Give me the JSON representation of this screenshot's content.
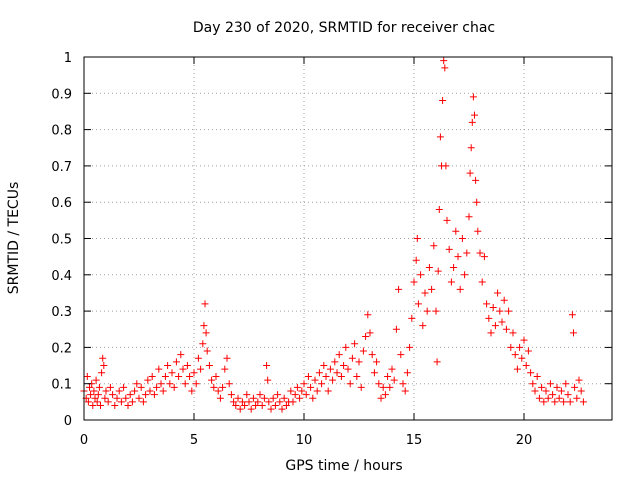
{
  "chart_data": {
    "type": "scatter",
    "title": "Day 230 of 2020, SRMTID for receiver chac",
    "xlabel": "GPS time / hours",
    "ylabel": "SRMTID / TECUs",
    "xlim": [
      0,
      24
    ],
    "ylim": [
      0,
      1
    ],
    "xticks": [
      0,
      5,
      10,
      15,
      20
    ],
    "xtick_labels": [
      "0",
      "5",
      "10",
      "15",
      "20"
    ],
    "yticks": [
      0,
      0.1,
      0.2,
      0.3,
      0.4,
      0.5,
      0.6,
      0.7,
      0.8,
      0.9,
      1.0
    ],
    "ytick_labels": [
      "0",
      "0.1",
      "0.2",
      "0.3",
      "0.4",
      "0.5",
      "0.6",
      "0.7",
      "0.8",
      "0.9",
      "1"
    ],
    "grid": true,
    "marker": "+",
    "color": "#ff0000",
    "series": [
      {
        "name": "SRMTID",
        "points": [
          [
            0.0,
            0.08
          ],
          [
            0.1,
            0.06
          ],
          [
            0.15,
            0.12
          ],
          [
            0.2,
            0.05
          ],
          [
            0.25,
            0.09
          ],
          [
            0.3,
            0.07
          ],
          [
            0.35,
            0.1
          ],
          [
            0.4,
            0.04
          ],
          [
            0.45,
            0.08
          ],
          [
            0.5,
            0.06
          ],
          [
            0.55,
            0.11
          ],
          [
            0.6,
            0.05
          ],
          [
            0.65,
            0.07
          ],
          [
            0.7,
            0.09
          ],
          [
            0.75,
            0.04
          ],
          [
            0.8,
            0.13
          ],
          [
            0.85,
            0.17
          ],
          [
            0.9,
            0.15
          ],
          [
            0.95,
            0.06
          ],
          [
            1.0,
            0.08
          ],
          [
            1.1,
            0.05
          ],
          [
            1.2,
            0.09
          ],
          [
            1.3,
            0.07
          ],
          [
            1.4,
            0.04
          ],
          [
            1.5,
            0.06
          ],
          [
            1.6,
            0.08
          ],
          [
            1.7,
            0.05
          ],
          [
            1.8,
            0.09
          ],
          [
            1.9,
            0.06
          ],
          [
            2.0,
            0.04
          ],
          [
            2.1,
            0.07
          ],
          [
            2.2,
            0.05
          ],
          [
            2.3,
            0.08
          ],
          [
            2.4,
            0.1
          ],
          [
            2.5,
            0.06
          ],
          [
            2.6,
            0.09
          ],
          [
            2.7,
            0.05
          ],
          [
            2.8,
            0.07
          ],
          [
            2.9,
            0.11
          ],
          [
            3.0,
            0.08
          ],
          [
            3.1,
            0.12
          ],
          [
            3.2,
            0.07
          ],
          [
            3.3,
            0.09
          ],
          [
            3.4,
            0.14
          ],
          [
            3.5,
            0.1
          ],
          [
            3.6,
            0.08
          ],
          [
            3.7,
            0.12
          ],
          [
            3.8,
            0.15
          ],
          [
            3.9,
            0.1
          ],
          [
            4.0,
            0.13
          ],
          [
            4.1,
            0.09
          ],
          [
            4.2,
            0.16
          ],
          [
            4.3,
            0.12
          ],
          [
            4.4,
            0.18
          ],
          [
            4.5,
            0.14
          ],
          [
            4.6,
            0.1
          ],
          [
            4.7,
            0.15
          ],
          [
            4.8,
            0.12
          ],
          [
            4.9,
            0.08
          ],
          [
            5.0,
            0.13
          ],
          [
            5.1,
            0.1
          ],
          [
            5.2,
            0.17
          ],
          [
            5.3,
            0.14
          ],
          [
            5.4,
            0.21
          ],
          [
            5.45,
            0.26
          ],
          [
            5.5,
            0.32
          ],
          [
            5.55,
            0.24
          ],
          [
            5.6,
            0.19
          ],
          [
            5.7,
            0.15
          ],
          [
            5.8,
            0.11
          ],
          [
            5.9,
            0.09
          ],
          [
            6.0,
            0.12
          ],
          [
            6.1,
            0.08
          ],
          [
            6.2,
            0.06
          ],
          [
            6.3,
            0.09
          ],
          [
            6.4,
            0.14
          ],
          [
            6.5,
            0.17
          ],
          [
            6.6,
            0.1
          ],
          [
            6.7,
            0.07
          ],
          [
            6.8,
            0.05
          ],
          [
            6.9,
            0.04
          ],
          [
            7.0,
            0.06
          ],
          [
            7.1,
            0.03
          ],
          [
            7.2,
            0.05
          ],
          [
            7.3,
            0.04
          ],
          [
            7.4,
            0.07
          ],
          [
            7.5,
            0.05
          ],
          [
            7.6,
            0.03
          ],
          [
            7.7,
            0.06
          ],
          [
            7.8,
            0.04
          ],
          [
            7.9,
            0.05
          ],
          [
            8.0,
            0.07
          ],
          [
            8.1,
            0.04
          ],
          [
            8.2,
            0.06
          ],
          [
            8.3,
            0.15
          ],
          [
            8.35,
            0.11
          ],
          [
            8.4,
            0.05
          ],
          [
            8.5,
            0.03
          ],
          [
            8.6,
            0.06
          ],
          [
            8.7,
            0.04
          ],
          [
            8.8,
            0.07
          ],
          [
            8.9,
            0.05
          ],
          [
            9.0,
            0.03
          ],
          [
            9.1,
            0.06
          ],
          [
            9.2,
            0.04
          ],
          [
            9.3,
            0.05
          ],
          [
            9.4,
            0.08
          ],
          [
            9.5,
            0.05
          ],
          [
            9.6,
            0.07
          ],
          [
            9.7,
            0.09
          ],
          [
            9.8,
            0.06
          ],
          [
            9.9,
            0.08
          ],
          [
            10.0,
            0.1
          ],
          [
            10.1,
            0.07
          ],
          [
            10.2,
            0.12
          ],
          [
            10.3,
            0.09
          ],
          [
            10.4,
            0.06
          ],
          [
            10.5,
            0.11
          ],
          [
            10.6,
            0.08
          ],
          [
            10.7,
            0.13
          ],
          [
            10.8,
            0.1
          ],
          [
            10.9,
            0.15
          ],
          [
            11.0,
            0.12
          ],
          [
            11.1,
            0.08
          ],
          [
            11.2,
            0.14
          ],
          [
            11.3,
            0.11
          ],
          [
            11.4,
            0.16
          ],
          [
            11.5,
            0.13
          ],
          [
            11.6,
            0.18
          ],
          [
            11.7,
            0.12
          ],
          [
            11.8,
            0.15
          ],
          [
            11.9,
            0.2
          ],
          [
            12.0,
            0.14
          ],
          [
            12.1,
            0.1
          ],
          [
            12.2,
            0.17
          ],
          [
            12.3,
            0.21
          ],
          [
            12.4,
            0.12
          ],
          [
            12.5,
            0.16
          ],
          [
            12.6,
            0.09
          ],
          [
            12.7,
            0.19
          ],
          [
            12.8,
            0.23
          ],
          [
            12.9,
            0.29
          ],
          [
            13.0,
            0.24
          ],
          [
            13.1,
            0.18
          ],
          [
            13.2,
            0.13
          ],
          [
            13.3,
            0.16
          ],
          [
            13.4,
            0.1
          ],
          [
            13.5,
            0.06
          ],
          [
            13.6,
            0.09
          ],
          [
            13.7,
            0.07
          ],
          [
            13.8,
            0.12
          ],
          [
            13.9,
            0.09
          ],
          [
            14.0,
            0.14
          ],
          [
            14.1,
            0.11
          ],
          [
            14.2,
            0.25
          ],
          [
            14.3,
            0.36
          ],
          [
            14.4,
            0.18
          ],
          [
            14.5,
            0.1
          ],
          [
            14.6,
            0.08
          ],
          [
            14.7,
            0.13
          ],
          [
            14.8,
            0.2
          ],
          [
            14.9,
            0.28
          ],
          [
            15.0,
            0.38
          ],
          [
            15.1,
            0.44
          ],
          [
            15.15,
            0.5
          ],
          [
            15.2,
            0.32
          ],
          [
            15.3,
            0.4
          ],
          [
            15.4,
            0.26
          ],
          [
            15.5,
            0.35
          ],
          [
            15.6,
            0.3
          ],
          [
            15.7,
            0.42
          ],
          [
            15.8,
            0.36
          ],
          [
            15.9,
            0.48
          ],
          [
            16.0,
            0.3
          ],
          [
            16.05,
            0.16
          ],
          [
            16.1,
            0.41
          ],
          [
            16.15,
            0.58
          ],
          [
            16.2,
            0.78
          ],
          [
            16.25,
            0.7
          ],
          [
            16.3,
            0.88
          ],
          [
            16.35,
            0.99
          ],
          [
            16.4,
            0.97
          ],
          [
            16.45,
            0.7
          ],
          [
            16.5,
            0.55
          ],
          [
            16.6,
            0.47
          ],
          [
            16.7,
            0.38
          ],
          [
            16.8,
            0.42
          ],
          [
            16.9,
            0.52
          ],
          [
            17.0,
            0.45
          ],
          [
            17.1,
            0.36
          ],
          [
            17.2,
            0.5
          ],
          [
            17.3,
            0.4
          ],
          [
            17.4,
            0.46
          ],
          [
            17.5,
            0.56
          ],
          [
            17.55,
            0.68
          ],
          [
            17.6,
            0.75
          ],
          [
            17.65,
            0.82
          ],
          [
            17.7,
            0.89
          ],
          [
            17.75,
            0.84
          ],
          [
            17.8,
            0.66
          ],
          [
            17.85,
            0.6
          ],
          [
            17.9,
            0.52
          ],
          [
            18.0,
            0.46
          ],
          [
            18.1,
            0.38
          ],
          [
            18.2,
            0.45
          ],
          [
            18.3,
            0.32
          ],
          [
            18.4,
            0.28
          ],
          [
            18.5,
            0.24
          ],
          [
            18.6,
            0.31
          ],
          [
            18.7,
            0.26
          ],
          [
            18.8,
            0.35
          ],
          [
            18.9,
            0.3
          ],
          [
            19.0,
            0.27
          ],
          [
            19.1,
            0.33
          ],
          [
            19.2,
            0.25
          ],
          [
            19.3,
            0.3
          ],
          [
            19.4,
            0.2
          ],
          [
            19.5,
            0.24
          ],
          [
            19.6,
            0.18
          ],
          [
            19.7,
            0.14
          ],
          [
            19.8,
            0.2
          ],
          [
            19.9,
            0.17
          ],
          [
            20.0,
            0.22
          ],
          [
            20.1,
            0.15
          ],
          [
            20.2,
            0.19
          ],
          [
            20.3,
            0.13
          ],
          [
            20.4,
            0.1
          ],
          [
            20.5,
            0.08
          ],
          [
            20.6,
            0.12
          ],
          [
            20.7,
            0.06
          ],
          [
            20.8,
            0.09
          ],
          [
            20.9,
            0.05
          ],
          [
            21.0,
            0.08
          ],
          [
            21.1,
            0.06
          ],
          [
            21.2,
            0.1
          ],
          [
            21.3,
            0.07
          ],
          [
            21.4,
            0.05
          ],
          [
            21.5,
            0.09
          ],
          [
            21.6,
            0.06
          ],
          [
            21.7,
            0.08
          ],
          [
            21.8,
            0.05
          ],
          [
            21.9,
            0.1
          ],
          [
            22.0,
            0.07
          ],
          [
            22.1,
            0.05
          ],
          [
            22.2,
            0.29
          ],
          [
            22.25,
            0.24
          ],
          [
            22.3,
            0.09
          ],
          [
            22.4,
            0.06
          ],
          [
            22.5,
            0.11
          ],
          [
            22.6,
            0.08
          ],
          [
            22.7,
            0.05
          ]
        ]
      }
    ]
  }
}
